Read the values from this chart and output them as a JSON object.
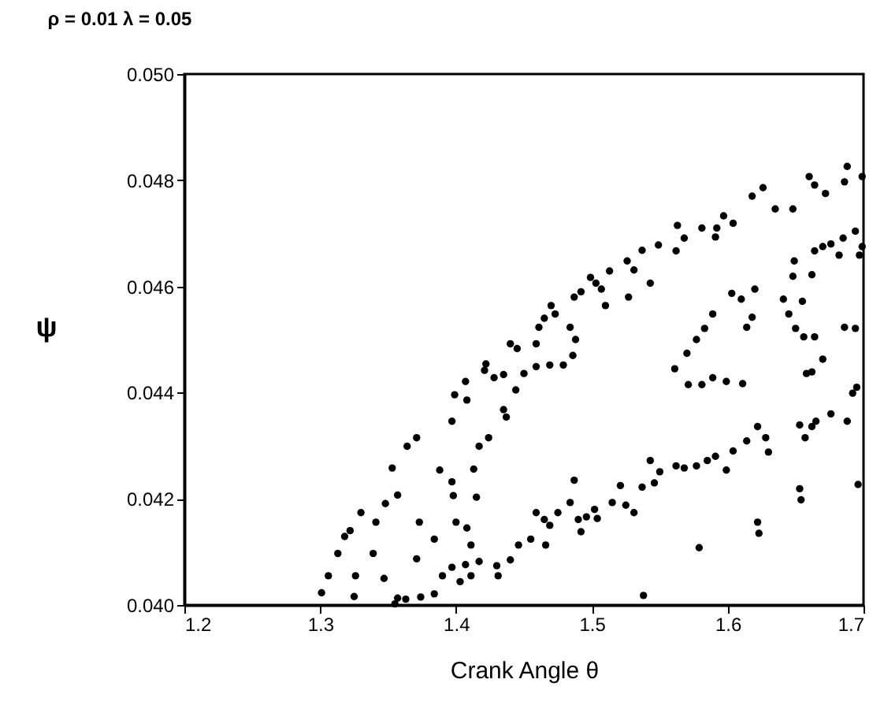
{
  "chart_data": {
    "type": "scatter",
    "title": "ρ = 0.01   λ = 0.05",
    "xlabel": "Crank Angle   θ",
    "ylabel": "ψ",
    "marker": "circle",
    "grid": false,
    "legend": false,
    "xlim": [
      1.2,
      1.7
    ],
    "xticks": [
      1.2,
      1.3,
      1.4,
      1.5,
      1.6,
      1.7
    ],
    "ylim": [
      0.04,
      0.05
    ],
    "yticks": [
      {
        "value": 0.04,
        "label": "0.040"
      },
      {
        "value": 0.042,
        "label": "0.042"
      },
      {
        "value": 0.044,
        "label": "0.044"
      },
      {
        "value": 0.046,
        "label": "0.046"
      },
      {
        "value": 0.048,
        "label": "0.048"
      },
      {
        "value": 0.05,
        "label": "0.050"
      }
    ],
    "series": [
      {
        "color": "#000000",
        "x": [
          1.301,
          1.306,
          1.313,
          1.318,
          1.322,
          1.33,
          1.341,
          1.348,
          1.353,
          1.357,
          1.364,
          1.371,
          1.388,
          1.397,
          1.399,
          1.407,
          1.408,
          1.421,
          1.422,
          1.428,
          1.435,
          1.44,
          1.445,
          1.459,
          1.461,
          1.465,
          1.47,
          1.473,
          1.484,
          1.487,
          1.492,
          1.499,
          1.503,
          1.507,
          1.51,
          1.513,
          1.526,
          1.527,
          1.531,
          1.537,
          1.543,
          1.549,
          1.562,
          1.563,
          1.568,
          1.581,
          1.591,
          1.592,
          1.597,
          1.604,
          1.618,
          1.626,
          1.635,
          1.648,
          1.66,
          1.664,
          1.672,
          1.686,
          1.688,
          1.699,
          1.325,
          1.326,
          1.339,
          1.347,
          1.357,
          1.371,
          1.373,
          1.384,
          1.397,
          1.398,
          1.4,
          1.408,
          1.411,
          1.413,
          1.415,
          1.417,
          1.424,
          1.435,
          1.437,
          1.444,
          1.45,
          1.459,
          1.469,
          1.479,
          1.486,
          1.488,
          1.561,
          1.57,
          1.577,
          1.583,
          1.589,
          1.603,
          1.61,
          1.614,
          1.618,
          1.62,
          1.571,
          1.581,
          1.589,
          1.599,
          1.611,
          1.641,
          1.645,
          1.648,
          1.649,
          1.65,
          1.655,
          1.656,
          1.662,
          1.664,
          1.662,
          1.658,
          1.67,
          1.664,
          1.67,
          1.676,
          1.682,
          1.686,
          1.694,
          1.692,
          1.685,
          1.694,
          1.697,
          1.699,
          1.695,
          1.688,
          1.676,
          1.665,
          1.653,
          1.662,
          1.657,
          1.653,
          1.654,
          1.696,
          1.622,
          1.623,
          1.579,
          1.538,
          1.355,
          1.363,
          1.374,
          1.384,
          1.39,
          1.397,
          1.403,
          1.407,
          1.411,
          1.417,
          1.43,
          1.431,
          1.44,
          1.446,
          1.455,
          1.466,
          1.459,
          1.465,
          1.469,
          1.475,
          1.484,
          1.49,
          1.496,
          1.502,
          1.504,
          1.515,
          1.521,
          1.525,
          1.531,
          1.537,
          1.546,
          1.55,
          1.543,
          1.562,
          1.568,
          1.577,
          1.585,
          1.591,
          1.599,
          1.604,
          1.614,
          1.622,
          1.628,
          1.63,
          1.492,
          1.487
        ],
        "values": [
          0.04023,
          0.04055,
          0.04097,
          0.04129,
          0.0414,
          0.04174,
          0.04156,
          0.04191,
          0.04258,
          0.04207,
          0.04299,
          0.04315,
          0.04254,
          0.04346,
          0.04396,
          0.04421,
          0.04386,
          0.04442,
          0.04454,
          0.04428,
          0.04434,
          0.04492,
          0.04483,
          0.04492,
          0.04523,
          0.0454,
          0.04564,
          0.04548,
          0.04523,
          0.0458,
          0.0459,
          0.04617,
          0.04606,
          0.04595,
          0.04564,
          0.04629,
          0.04648,
          0.0458,
          0.04631,
          0.04668,
          0.04606,
          0.04678,
          0.04667,
          0.04715,
          0.04691,
          0.0471,
          0.04693,
          0.0471,
          0.04733,
          0.04719,
          0.0477,
          0.04786,
          0.04746,
          0.04746,
          0.04807,
          0.04791,
          0.04775,
          0.04797,
          0.04826,
          0.04807,
          0.04016,
          0.04055,
          0.04097,
          0.0405,
          0.04013,
          0.04087,
          0.04156,
          0.04124,
          0.04232,
          0.04206,
          0.04156,
          0.04145,
          0.04113,
          0.04256,
          0.04203,
          0.04299,
          0.04315,
          0.04368,
          0.04354,
          0.04405,
          0.04436,
          0.04449,
          0.04452,
          0.04452,
          0.0447,
          0.045,
          0.04445,
          0.04474,
          0.045,
          0.04521,
          0.04548,
          0.04587,
          0.04576,
          0.04523,
          0.04542,
          0.04595,
          0.04415,
          0.04415,
          0.04428,
          0.04421,
          0.04417,
          0.04576,
          0.04548,
          0.04619,
          0.04648,
          0.04521,
          0.04572,
          0.04505,
          0.04622,
          0.04505,
          0.04439,
          0.04436,
          0.04463,
          0.04667,
          0.04675,
          0.0468,
          0.04659,
          0.04523,
          0.04521,
          0.04399,
          0.04691,
          0.04704,
          0.04659,
          0.04675,
          0.0441,
          0.04346,
          0.0436,
          0.04346,
          0.04339,
          0.04336,
          0.04315,
          0.04219,
          0.04198,
          0.04227,
          0.04156,
          0.04135,
          0.04108,
          0.04018,
          0.04002,
          0.04011,
          0.04015,
          0.04021,
          0.04055,
          0.04071,
          0.04044,
          0.04076,
          0.04055,
          0.04082,
          0.04074,
          0.04055,
          0.04085,
          0.04113,
          0.04124,
          0.04113,
          0.04174,
          0.04161,
          0.0415,
          0.04174,
          0.04193,
          0.04161,
          0.04166,
          0.0418,
          0.04163,
          0.04193,
          0.04225,
          0.04188,
          0.04174,
          0.04222,
          0.0423,
          0.04251,
          0.04272,
          0.04262,
          0.04258,
          0.04262,
          0.04272,
          0.0428,
          0.04254,
          0.0429,
          0.04309,
          0.04336,
          0.04315,
          0.04288,
          0.04138,
          0.04235
        ]
      }
    ]
  }
}
